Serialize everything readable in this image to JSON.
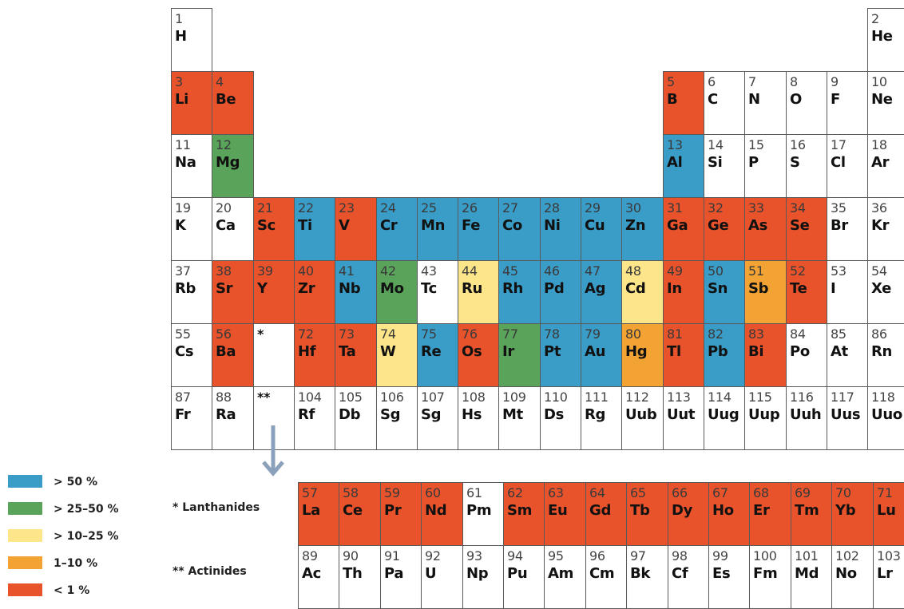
{
  "legend": [
    {
      "key": "b50",
      "label": "> 50 %",
      "color": "#3a9dc8"
    },
    {
      "key": "g25",
      "label": "> 25–50 %",
      "color": "#5aa35a"
    },
    {
      "key": "y10",
      "label": "> 10–25 %",
      "color": "#fde589"
    },
    {
      "key": "o1",
      "label": "1–10 %",
      "color": "#f3a333"
    },
    {
      "key": "r1",
      "label": "< 1 %",
      "color": "#e9532b"
    }
  ],
  "series_labels": {
    "lanthanides": "* Lanthanides",
    "actinides": "** Actinides"
  },
  "elements": [
    {
      "num": "1",
      "sym": "H",
      "row": 1,
      "col": 1,
      "cat": "none"
    },
    {
      "num": "2",
      "sym": "He",
      "row": 1,
      "col": 18,
      "cat": "none"
    },
    {
      "num": "3",
      "sym": "Li",
      "row": 2,
      "col": 1,
      "cat": "r1"
    },
    {
      "num": "4",
      "sym": "Be",
      "row": 2,
      "col": 2,
      "cat": "r1"
    },
    {
      "num": "5",
      "sym": "B",
      "row": 2,
      "col": 13,
      "cat": "r1"
    },
    {
      "num": "6",
      "sym": "C",
      "row": 2,
      "col": 14,
      "cat": "none"
    },
    {
      "num": "7",
      "sym": "N",
      "row": 2,
      "col": 15,
      "cat": "none"
    },
    {
      "num": "8",
      "sym": "O",
      "row": 2,
      "col": 16,
      "cat": "none"
    },
    {
      "num": "9",
      "sym": "F",
      "row": 2,
      "col": 17,
      "cat": "none"
    },
    {
      "num": "10",
      "sym": "Ne",
      "row": 2,
      "col": 18,
      "cat": "none"
    },
    {
      "num": "11",
      "sym": "Na",
      "row": 3,
      "col": 1,
      "cat": "none"
    },
    {
      "num": "12",
      "sym": "Mg",
      "row": 3,
      "col": 2,
      "cat": "g25"
    },
    {
      "num": "13",
      "sym": "Al",
      "row": 3,
      "col": 13,
      "cat": "b50"
    },
    {
      "num": "14",
      "sym": "Si",
      "row": 3,
      "col": 14,
      "cat": "none"
    },
    {
      "num": "15",
      "sym": "P",
      "row": 3,
      "col": 15,
      "cat": "none"
    },
    {
      "num": "16",
      "sym": "S",
      "row": 3,
      "col": 16,
      "cat": "none"
    },
    {
      "num": "17",
      "sym": "Cl",
      "row": 3,
      "col": 17,
      "cat": "none"
    },
    {
      "num": "18",
      "sym": "Ar",
      "row": 3,
      "col": 18,
      "cat": "none"
    },
    {
      "num": "19",
      "sym": "K",
      "row": 4,
      "col": 1,
      "cat": "none"
    },
    {
      "num": "20",
      "sym": "Ca",
      "row": 4,
      "col": 2,
      "cat": "none"
    },
    {
      "num": "21",
      "sym": "Sc",
      "row": 4,
      "col": 3,
      "cat": "r1"
    },
    {
      "num": "22",
      "sym": "Ti",
      "row": 4,
      "col": 4,
      "cat": "b50"
    },
    {
      "num": "23",
      "sym": "V",
      "row": 4,
      "col": 5,
      "cat": "r1"
    },
    {
      "num": "24",
      "sym": "Cr",
      "row": 4,
      "col": 6,
      "cat": "b50"
    },
    {
      "num": "25",
      "sym": "Mn",
      "row": 4,
      "col": 7,
      "cat": "b50"
    },
    {
      "num": "26",
      "sym": "Fe",
      "row": 4,
      "col": 8,
      "cat": "b50"
    },
    {
      "num": "27",
      "sym": "Co",
      "row": 4,
      "col": 9,
      "cat": "b50"
    },
    {
      "num": "28",
      "sym": "Ni",
      "row": 4,
      "col": 10,
      "cat": "b50"
    },
    {
      "num": "29",
      "sym": "Cu",
      "row": 4,
      "col": 11,
      "cat": "b50"
    },
    {
      "num": "30",
      "sym": "Zn",
      "row": 4,
      "col": 12,
      "cat": "b50"
    },
    {
      "num": "31",
      "sym": "Ga",
      "row": 4,
      "col": 13,
      "cat": "r1"
    },
    {
      "num": "32",
      "sym": "Ge",
      "row": 4,
      "col": 14,
      "cat": "r1"
    },
    {
      "num": "33",
      "sym": "As",
      "row": 4,
      "col": 15,
      "cat": "r1"
    },
    {
      "num": "34",
      "sym": "Se",
      "row": 4,
      "col": 16,
      "cat": "r1"
    },
    {
      "num": "35",
      "sym": "Br",
      "row": 4,
      "col": 17,
      "cat": "none"
    },
    {
      "num": "36",
      "sym": "Kr",
      "row": 4,
      "col": 18,
      "cat": "none"
    },
    {
      "num": "37",
      "sym": "Rb",
      "row": 5,
      "col": 1,
      "cat": "none"
    },
    {
      "num": "38",
      "sym": "Sr",
      "row": 5,
      "col": 2,
      "cat": "r1"
    },
    {
      "num": "39",
      "sym": "Y",
      "row": 5,
      "col": 3,
      "cat": "r1"
    },
    {
      "num": "40",
      "sym": "Zr",
      "row": 5,
      "col": 4,
      "cat": "r1"
    },
    {
      "num": "41",
      "sym": "Nb",
      "row": 5,
      "col": 5,
      "cat": "b50"
    },
    {
      "num": "42",
      "sym": "Mo",
      "row": 5,
      "col": 6,
      "cat": "g25"
    },
    {
      "num": "43",
      "sym": "Tc",
      "row": 5,
      "col": 7,
      "cat": "none"
    },
    {
      "num": "44",
      "sym": "Ru",
      "row": 5,
      "col": 8,
      "cat": "y10"
    },
    {
      "num": "45",
      "sym": "Rh",
      "row": 5,
      "col": 9,
      "cat": "b50"
    },
    {
      "num": "46",
      "sym": "Pd",
      "row": 5,
      "col": 10,
      "cat": "b50"
    },
    {
      "num": "47",
      "sym": "Ag",
      "row": 5,
      "col": 11,
      "cat": "b50"
    },
    {
      "num": "48",
      "sym": "Cd",
      "row": 5,
      "col": 12,
      "cat": "y10"
    },
    {
      "num": "49",
      "sym": "In",
      "row": 5,
      "col": 13,
      "cat": "r1"
    },
    {
      "num": "50",
      "sym": "Sn",
      "row": 5,
      "col": 14,
      "cat": "b50"
    },
    {
      "num": "51",
      "sym": "Sb",
      "row": 5,
      "col": 15,
      "cat": "o1"
    },
    {
      "num": "52",
      "sym": "Te",
      "row": 5,
      "col": 16,
      "cat": "r1"
    },
    {
      "num": "53",
      "sym": "I",
      "row": 5,
      "col": 17,
      "cat": "none"
    },
    {
      "num": "54",
      "sym": "Xe",
      "row": 5,
      "col": 18,
      "cat": "none"
    },
    {
      "num": "55",
      "sym": "Cs",
      "row": 6,
      "col": 1,
      "cat": "none"
    },
    {
      "num": "56",
      "sym": "Ba",
      "row": 6,
      "col": 2,
      "cat": "r1"
    },
    {
      "num": "*",
      "sym": "",
      "row": 6,
      "col": 3,
      "cat": "none"
    },
    {
      "num": "72",
      "sym": "Hf",
      "row": 6,
      "col": 4,
      "cat": "r1"
    },
    {
      "num": "73",
      "sym": "Ta",
      "row": 6,
      "col": 5,
      "cat": "r1"
    },
    {
      "num": "74",
      "sym": "W",
      "row": 6,
      "col": 6,
      "cat": "y10"
    },
    {
      "num": "75",
      "sym": "Re",
      "row": 6,
      "col": 7,
      "cat": "b50"
    },
    {
      "num": "76",
      "sym": "Os",
      "row": 6,
      "col": 8,
      "cat": "r1"
    },
    {
      "num": "77",
      "sym": "Ir",
      "row": 6,
      "col": 9,
      "cat": "g25"
    },
    {
      "num": "78",
      "sym": "Pt",
      "row": 6,
      "col": 10,
      "cat": "b50"
    },
    {
      "num": "79",
      "sym": "Au",
      "row": 6,
      "col": 11,
      "cat": "b50"
    },
    {
      "num": "80",
      "sym": "Hg",
      "row": 6,
      "col": 12,
      "cat": "o1"
    },
    {
      "num": "81",
      "sym": "Tl",
      "row": 6,
      "col": 13,
      "cat": "r1"
    },
    {
      "num": "82",
      "sym": "Pb",
      "row": 6,
      "col": 14,
      "cat": "b50"
    },
    {
      "num": "83",
      "sym": "Bi",
      "row": 6,
      "col": 15,
      "cat": "r1"
    },
    {
      "num": "84",
      "sym": "Po",
      "row": 6,
      "col": 16,
      "cat": "none"
    },
    {
      "num": "85",
      "sym": "At",
      "row": 6,
      "col": 17,
      "cat": "none"
    },
    {
      "num": "86",
      "sym": "Rn",
      "row": 6,
      "col": 18,
      "cat": "none"
    },
    {
      "num": "87",
      "sym": "Fr",
      "row": 7,
      "col": 1,
      "cat": "none"
    },
    {
      "num": "88",
      "sym": "Ra",
      "row": 7,
      "col": 2,
      "cat": "none"
    },
    {
      "num": "**",
      "sym": "",
      "row": 7,
      "col": 3,
      "cat": "none"
    },
    {
      "num": "104",
      "sym": "Rf",
      "row": 7,
      "col": 4,
      "cat": "none"
    },
    {
      "num": "105",
      "sym": "Db",
      "row": 7,
      "col": 5,
      "cat": "none"
    },
    {
      "num": "106",
      "sym": "Sg",
      "row": 7,
      "col": 6,
      "cat": "none"
    },
    {
      "num": "107",
      "sym": "Sg",
      "row": 7,
      "col": 7,
      "cat": "none"
    },
    {
      "num": "108",
      "sym": "Hs",
      "row": 7,
      "col": 8,
      "cat": "none"
    },
    {
      "num": "109",
      "sym": "Mt",
      "row": 7,
      "col": 9,
      "cat": "none"
    },
    {
      "num": "110",
      "sym": "Ds",
      "row": 7,
      "col": 10,
      "cat": "none"
    },
    {
      "num": "111",
      "sym": "Rg",
      "row": 7,
      "col": 11,
      "cat": "none"
    },
    {
      "num": "112",
      "sym": "Uub",
      "row": 7,
      "col": 12,
      "cat": "none"
    },
    {
      "num": "113",
      "sym": "Uut",
      "row": 7,
      "col": 13,
      "cat": "none"
    },
    {
      "num": "114",
      "sym": "Uug",
      "row": 7,
      "col": 14,
      "cat": "none"
    },
    {
      "num": "115",
      "sym": "Uup",
      "row": 7,
      "col": 15,
      "cat": "none"
    },
    {
      "num": "116",
      "sym": "Uuh",
      "row": 7,
      "col": 16,
      "cat": "none"
    },
    {
      "num": "117",
      "sym": "Uus",
      "row": 7,
      "col": 17,
      "cat": "none"
    },
    {
      "num": "118",
      "sym": "Uuo",
      "row": 7,
      "col": 18,
      "cat": "none"
    }
  ],
  "f_block": [
    {
      "num": "57",
      "sym": "La",
      "row": 1,
      "col": 1,
      "cat": "r1"
    },
    {
      "num": "58",
      "sym": "Ce",
      "row": 1,
      "col": 2,
      "cat": "r1"
    },
    {
      "num": "59",
      "sym": "Pr",
      "row": 1,
      "col": 3,
      "cat": "r1"
    },
    {
      "num": "60",
      "sym": "Nd",
      "row": 1,
      "col": 4,
      "cat": "r1"
    },
    {
      "num": "61",
      "sym": "Pm",
      "row": 1,
      "col": 5,
      "cat": "none"
    },
    {
      "num": "62",
      "sym": "Sm",
      "row": 1,
      "col": 6,
      "cat": "r1"
    },
    {
      "num": "63",
      "sym": "Eu",
      "row": 1,
      "col": 7,
      "cat": "r1"
    },
    {
      "num": "64",
      "sym": "Gd",
      "row": 1,
      "col": 8,
      "cat": "r1"
    },
    {
      "num": "65",
      "sym": "Tb",
      "row": 1,
      "col": 9,
      "cat": "r1"
    },
    {
      "num": "66",
      "sym": "Dy",
      "row": 1,
      "col": 10,
      "cat": "r1"
    },
    {
      "num": "67",
      "sym": "Ho",
      "row": 1,
      "col": 11,
      "cat": "r1"
    },
    {
      "num": "68",
      "sym": "Er",
      "row": 1,
      "col": 12,
      "cat": "r1"
    },
    {
      "num": "69",
      "sym": "Tm",
      "row": 1,
      "col": 13,
      "cat": "r1"
    },
    {
      "num": "70",
      "sym": "Yb",
      "row": 1,
      "col": 14,
      "cat": "r1"
    },
    {
      "num": "71",
      "sym": "Lu",
      "row": 1,
      "col": 15,
      "cat": "r1"
    },
    {
      "num": "89",
      "sym": "Ac",
      "row": 2,
      "col": 1,
      "cat": "none"
    },
    {
      "num": "90",
      "sym": "Th",
      "row": 2,
      "col": 2,
      "cat": "none"
    },
    {
      "num": "91",
      "sym": "Pa",
      "row": 2,
      "col": 3,
      "cat": "none"
    },
    {
      "num": "92",
      "sym": "U",
      "row": 2,
      "col": 4,
      "cat": "none"
    },
    {
      "num": "93",
      "sym": "Np",
      "row": 2,
      "col": 5,
      "cat": "none"
    },
    {
      "num": "94",
      "sym": "Pu",
      "row": 2,
      "col": 6,
      "cat": "none"
    },
    {
      "num": "95",
      "sym": "Am",
      "row": 2,
      "col": 7,
      "cat": "none"
    },
    {
      "num": "96",
      "sym": "Cm",
      "row": 2,
      "col": 8,
      "cat": "none"
    },
    {
      "num": "97",
      "sym": "Bk",
      "row": 2,
      "col": 9,
      "cat": "none"
    },
    {
      "num": "98",
      "sym": "Cf",
      "row": 2,
      "col": 10,
      "cat": "none"
    },
    {
      "num": "99",
      "sym": "Es",
      "row": 2,
      "col": 11,
      "cat": "none"
    },
    {
      "num": "100",
      "sym": "Fm",
      "row": 2,
      "col": 12,
      "cat": "none"
    },
    {
      "num": "101",
      "sym": "Md",
      "row": 2,
      "col": 13,
      "cat": "none"
    },
    {
      "num": "102",
      "sym": "No",
      "row": 2,
      "col": 14,
      "cat": "none"
    },
    {
      "num": "103",
      "sym": "Lr",
      "row": 2,
      "col": 15,
      "cat": "none"
    }
  ]
}
